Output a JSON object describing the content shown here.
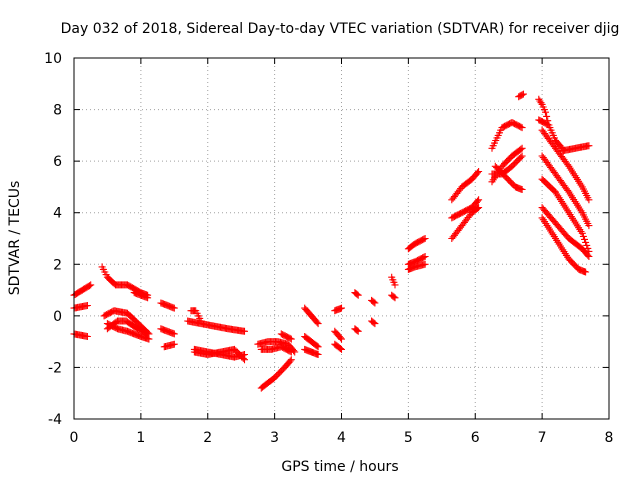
{
  "chart_data": {
    "type": "scatter",
    "title": "Day 032 of 2018, Sidereal Day-to-day VTEC variation (SDTVAR) for receiver djig",
    "xlabel": "GPS time / hours",
    "ylabel": "SDTVAR / TECUs",
    "xlim": [
      0,
      8
    ],
    "ylim": [
      -4,
      10
    ],
    "xticks": [
      "0",
      "1",
      "2",
      "3",
      "4",
      "5",
      "6",
      "7",
      "8"
    ],
    "yticks": [
      "-4",
      "-2",
      "0",
      "2",
      "4",
      "6",
      "8",
      "10"
    ],
    "grid": true,
    "marker": "+",
    "marker_color": "#ff0000",
    "segments": [
      {
        "x": [
          0.0,
          0.25
        ],
        "y": [
          0.8,
          1.2
        ]
      },
      {
        "x": [
          0.0,
          0.2
        ],
        "y": [
          0.3,
          0.4
        ]
      },
      {
        "x": [
          0.0,
          0.2
        ],
        "y": [
          -0.7,
          -0.8
        ]
      },
      {
        "x": [
          0.42,
          0.5,
          0.62,
          0.8,
          1.0,
          1.1
        ],
        "y": [
          1.9,
          1.5,
          1.2,
          1.2,
          0.9,
          0.8
        ]
      },
      {
        "x": [
          0.5,
          0.65,
          0.78,
          0.95,
          1.1
        ],
        "y": [
          -0.5,
          -0.2,
          -0.2,
          -0.5,
          -0.7
        ]
      },
      {
        "x": [
          0.45,
          0.6,
          0.8,
          1.0,
          1.12
        ],
        "y": [
          0.0,
          0.2,
          0.1,
          -0.4,
          -0.7
        ]
      },
      {
        "x": [
          0.5,
          0.65,
          0.8,
          1.0,
          1.12
        ],
        "y": [
          -0.3,
          -0.5,
          -0.6,
          -0.8,
          -0.9
        ]
      },
      {
        "x": [
          0.9,
          1.1
        ],
        "y": [
          0.9,
          0.7
        ]
      },
      {
        "x": [
          1.3,
          1.5
        ],
        "y": [
          0.5,
          0.3
        ]
      },
      {
        "x": [
          1.3,
          1.5
        ],
        "y": [
          -0.5,
          -0.7
        ]
      },
      {
        "x": [
          1.35,
          1.5
        ],
        "y": [
          -1.2,
          -1.1
        ]
      },
      {
        "x": [
          1.75,
          1.82,
          1.9
        ],
        "y": [
          0.2,
          0.2,
          -0.2
        ]
      },
      {
        "x": [
          1.7,
          1.9,
          2.1,
          2.3,
          2.55
        ],
        "y": [
          -0.2,
          -0.3,
          -0.4,
          -0.5,
          -0.6
        ]
      },
      {
        "x": [
          1.8,
          2.0,
          2.2,
          2.4,
          2.55
        ],
        "y": [
          -1.3,
          -1.4,
          -1.5,
          -1.6,
          -1.5
        ]
      },
      {
        "x": [
          1.8,
          2.0,
          2.2,
          2.4,
          2.55
        ],
        "y": [
          -1.4,
          -1.5,
          -1.4,
          -1.3,
          -1.7
        ]
      },
      {
        "x": [
          2.75,
          2.9,
          3.05,
          3.2,
          3.3
        ],
        "y": [
          -1.1,
          -1.0,
          -1.0,
          -1.1,
          -1.4
        ]
      },
      {
        "x": [
          2.8,
          2.95,
          3.1,
          3.25
        ],
        "y": [
          -1.3,
          -1.3,
          -1.2,
          -1.4
        ]
      },
      {
        "x": [
          2.8,
          3.0,
          3.15,
          3.25
        ],
        "y": [
          -2.8,
          -2.4,
          -2.0,
          -1.7
        ]
      },
      {
        "x": [
          3.1,
          3.25
        ],
        "y": [
          -0.7,
          -0.9
        ]
      },
      {
        "x": [
          3.45,
          3.55,
          3.65
        ],
        "y": [
          0.3,
          0.0,
          -0.3
        ]
      },
      {
        "x": [
          3.45,
          3.55,
          3.65
        ],
        "y": [
          -0.8,
          -1.0,
          -1.2
        ]
      },
      {
        "x": [
          3.45,
          3.55,
          3.65
        ],
        "y": [
          -1.3,
          -1.4,
          -1.5
        ]
      },
      {
        "x": [
          3.9,
          4.0
        ],
        "y": [
          0.2,
          0.3
        ]
      },
      {
        "x": [
          3.9,
          4.0
        ],
        "y": [
          -0.6,
          -0.9
        ]
      },
      {
        "x": [
          3.9,
          4.0
        ],
        "y": [
          -1.1,
          -1.3
        ]
      },
      {
        "x": [
          4.2,
          4.25
        ],
        "y": [
          0.9,
          0.8
        ]
      },
      {
        "x": [
          4.2,
          4.25
        ],
        "y": [
          -0.5,
          -0.6
        ]
      },
      {
        "x": [
          4.45,
          4.5
        ],
        "y": [
          0.6,
          0.5
        ]
      },
      {
        "x": [
          4.45,
          4.5
        ],
        "y": [
          -0.2,
          -0.3
        ]
      },
      {
        "x": [
          4.75,
          4.8
        ],
        "y": [
          1.5,
          1.2
        ]
      },
      {
        "x": [
          4.75,
          4.8
        ],
        "y": [
          0.8,
          0.7
        ]
      },
      {
        "x": [
          5.0,
          5.1,
          5.25
        ],
        "y": [
          2.6,
          2.8,
          3.0
        ]
      },
      {
        "x": [
          5.0,
          5.1,
          5.25
        ],
        "y": [
          2.0,
          2.1,
          2.3
        ]
      },
      {
        "x": [
          5.0,
          5.1,
          5.25
        ],
        "y": [
          1.8,
          1.9,
          2.0
        ]
      },
      {
        "x": [
          5.65,
          5.8,
          5.95,
          6.05
        ],
        "y": [
          4.5,
          5.0,
          5.3,
          5.6
        ]
      },
      {
        "x": [
          5.65,
          5.8,
          5.95,
          6.05
        ],
        "y": [
          3.8,
          4.0,
          4.2,
          4.5
        ]
      },
      {
        "x": [
          5.65,
          5.8,
          5.95,
          6.05
        ],
        "y": [
          3.0,
          3.5,
          4.0,
          4.2
        ]
      },
      {
        "x": [
          6.25,
          6.4,
          6.55,
          6.7
        ],
        "y": [
          6.5,
          7.3,
          7.5,
          7.3
        ]
      },
      {
        "x": [
          6.25,
          6.4,
          6.55,
          6.7
        ],
        "y": [
          5.2,
          5.8,
          6.2,
          6.5
        ]
      },
      {
        "x": [
          6.25,
          6.4,
          6.55,
          6.7
        ],
        "y": [
          5.5,
          5.5,
          5.8,
          6.2
        ]
      },
      {
        "x": [
          6.3,
          6.45,
          6.6,
          6.7
        ],
        "y": [
          5.8,
          5.4,
          5.0,
          4.9
        ]
      },
      {
        "x": [
          6.65,
          6.72
        ],
        "y": [
          8.5,
          8.6
        ]
      },
      {
        "x": [
          6.95,
          7.0,
          7.05,
          7.1
        ],
        "y": [
          8.4,
          8.2,
          7.9,
          7.4
        ]
      },
      {
        "x": [
          6.95,
          7.1,
          7.2,
          7.3
        ],
        "y": [
          7.6,
          7.4,
          6.8,
          6.5
        ]
      },
      {
        "x": [
          7.3,
          7.5,
          7.7
        ],
        "y": [
          6.4,
          6.5,
          6.6
        ]
      },
      {
        "x": [
          7.0,
          7.2,
          7.4,
          7.6,
          7.7
        ],
        "y": [
          7.2,
          6.5,
          5.8,
          5.0,
          4.5
        ]
      },
      {
        "x": [
          7.0,
          7.2,
          7.4,
          7.6,
          7.7
        ],
        "y": [
          6.2,
          5.5,
          4.8,
          4.0,
          3.5
        ]
      },
      {
        "x": [
          7.0,
          7.2,
          7.4,
          7.6,
          7.7
        ],
        "y": [
          5.3,
          4.8,
          4.0,
          3.2,
          2.5
        ]
      },
      {
        "x": [
          7.0,
          7.2,
          7.4,
          7.6,
          7.7
        ],
        "y": [
          4.2,
          3.6,
          3.0,
          2.6,
          2.3
        ]
      },
      {
        "x": [
          7.0,
          7.2,
          7.4,
          7.55,
          7.65
        ],
        "y": [
          3.8,
          3.0,
          2.2,
          1.8,
          1.7
        ]
      }
    ]
  }
}
